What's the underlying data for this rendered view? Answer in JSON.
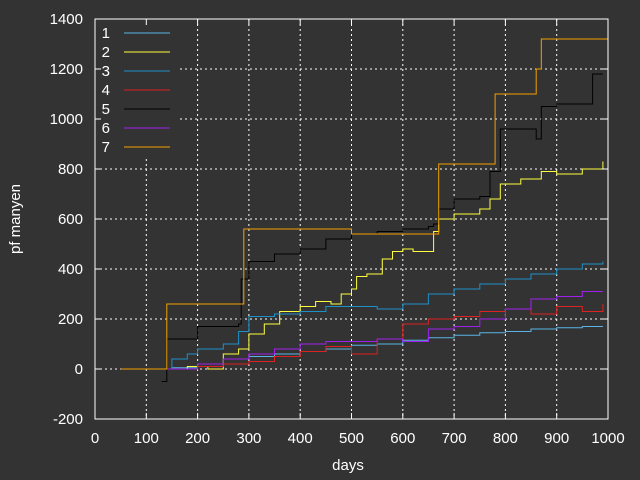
{
  "chart_data": {
    "type": "line",
    "title": "",
    "xlabel": "days",
    "ylabel": "pf manyen",
    "xlim": [
      0,
      1000
    ],
    "ylim": [
      -200,
      1400
    ],
    "xticks": [
      "0",
      "100",
      "200",
      "300",
      "400",
      "500",
      "600",
      "700",
      "800",
      "900",
      "1000"
    ],
    "yticks": [
      "-200",
      "0",
      "200",
      "400",
      "600",
      "800",
      "1000",
      "1200",
      "1400"
    ],
    "grid": true,
    "legend_position": "top-left",
    "colors": {
      "background": "#333333",
      "axes": "#ffffff",
      "grid": "#ffffff"
    },
    "series": [
      {
        "name": "1",
        "color": "#5ab4e6",
        "x": [
          130,
          150,
          200,
          250,
          300,
          350,
          400,
          450,
          500,
          550,
          600,
          650,
          700,
          750,
          800,
          850,
          900,
          950,
          990
        ],
        "y": [
          0,
          5,
          20,
          40,
          50,
          60,
          70,
          80,
          95,
          100,
          115,
          125,
          135,
          145,
          150,
          160,
          165,
          170,
          170
        ]
      },
      {
        "name": "2",
        "color": "#ffff40",
        "x": [
          140,
          180,
          220,
          250,
          280,
          300,
          330,
          360,
          400,
          430,
          460,
          480,
          500,
          510,
          530,
          560,
          580,
          600,
          620,
          650,
          660,
          670,
          700,
          750,
          770,
          790,
          830,
          870,
          900,
          950,
          990
        ],
        "y": [
          0,
          10,
          0,
          60,
          80,
          140,
          180,
          230,
          250,
          270,
          260,
          300,
          320,
          370,
          380,
          440,
          470,
          480,
          470,
          470,
          550,
          600,
          620,
          640,
          680,
          740,
          760,
          790,
          780,
          800,
          830
        ]
      },
      {
        "name": "3",
        "color": "#1e90c8",
        "x": [
          130,
          150,
          180,
          200,
          250,
          280,
          300,
          350,
          400,
          450,
          500,
          550,
          600,
          650,
          700,
          750,
          800,
          850,
          900,
          950,
          990
        ],
        "y": [
          0,
          40,
          60,
          80,
          100,
          150,
          210,
          220,
          230,
          250,
          250,
          240,
          260,
          300,
          320,
          340,
          360,
          380,
          400,
          420,
          430
        ]
      },
      {
        "name": "4",
        "color": "#dd2222",
        "x": [
          140,
          200,
          250,
          300,
          350,
          400,
          450,
          500,
          550,
          600,
          650,
          700,
          750,
          800,
          850,
          900,
          950,
          990
        ],
        "y": [
          0,
          10,
          20,
          30,
          50,
          70,
          90,
          60,
          120,
          180,
          200,
          210,
          230,
          240,
          220,
          250,
          230,
          260
        ]
      },
      {
        "name": "5",
        "color": "#000000",
        "x": [
          130,
          140,
          200,
          280,
          285,
          300,
          350,
          400,
          450,
          500,
          550,
          600,
          650,
          660,
          670,
          700,
          750,
          770,
          790,
          830,
          860,
          870,
          900,
          950,
          970,
          990
        ],
        "y": [
          -50,
          120,
          170,
          180,
          360,
          430,
          460,
          480,
          520,
          540,
          550,
          560,
          570,
          580,
          640,
          680,
          690,
          790,
          960,
          960,
          920,
          1050,
          1060,
          1060,
          1180,
          1180
        ]
      },
      {
        "name": "6",
        "color": "#a020f0",
        "x": [
          140,
          200,
          250,
          300,
          350,
          400,
          450,
          500,
          550,
          600,
          650,
          700,
          750,
          800,
          850,
          900,
          950,
          990
        ],
        "y": [
          0,
          20,
          40,
          60,
          80,
          100,
          110,
          110,
          120,
          110,
          160,
          170,
          200,
          240,
          280,
          290,
          310,
          310
        ]
      },
      {
        "name": "7",
        "color": "#f0a000",
        "x": [
          50,
          140,
          140,
          290,
          290,
          500,
          500,
          670,
          670,
          780,
          780,
          860,
          860,
          870,
          870,
          1000
        ],
        "y": [
          0,
          0,
          260,
          260,
          560,
          560,
          540,
          540,
          820,
          820,
          1100,
          1100,
          1200,
          1200,
          1320,
          1320
        ]
      }
    ]
  }
}
